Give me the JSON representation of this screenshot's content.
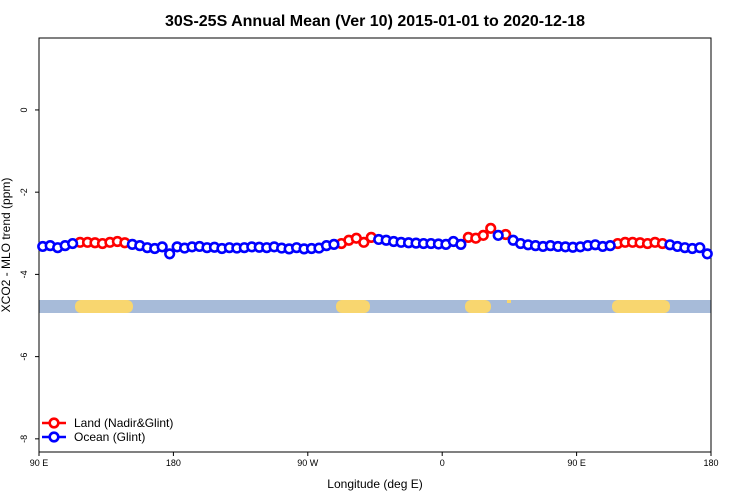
{
  "chart_data": {
    "type": "scatter",
    "title": "30S-25S Annual Mean (Ver 10)   2015-01-01 to 2020-12-18",
    "x_label": "Longitude (deg E)",
    "y_label": "XCO2 - MLO trend (ppm)",
    "xlim": [
      90,
      540
    ],
    "ylim": [
      -8.32,
      1.75
    ],
    "xticks": [
      {
        "value": 90,
        "label": "90 E"
      },
      {
        "value": 180,
        "label": "180"
      },
      {
        "value": 270,
        "label": "90 W"
      },
      {
        "value": 360,
        "label": "0"
      },
      {
        "value": 450,
        "label": "90 E"
      },
      {
        "value": 540,
        "label": "180"
      }
    ],
    "yticks": [
      0,
      -2,
      -4,
      -6,
      -8
    ],
    "legend": "bottom-left",
    "series": [
      {
        "name": "Land (Nadir&Glint)",
        "color": "#ff0000",
        "x": [
          117.5,
          122.5,
          127.5,
          132.5,
          137.5,
          142.5,
          147.5,
          292.5,
          297.5,
          302.5,
          307.5,
          312.5,
          377.5,
          382.5,
          387.5,
          392.5,
          402.5,
          477.5,
          482.5,
          487.5,
          492.5,
          497.5,
          502.5,
          507.5
        ],
        "values": [
          -3.22,
          -3.22,
          -3.23,
          -3.25,
          -3.22,
          -3.2,
          -3.23,
          -3.25,
          -3.17,
          -3.12,
          -3.22,
          -3.1,
          -3.1,
          -3.12,
          -3.05,
          -2.88,
          -3.03,
          -3.25,
          -3.22,
          -3.22,
          -3.23,
          -3.25,
          -3.22,
          -3.25
        ]
      },
      {
        "name": "Ocean (Glint)",
        "color": "#0000ff",
        "x": [
          92.5,
          97.5,
          102.5,
          107.5,
          112.5,
          152.5,
          157.5,
          162.5,
          167.5,
          172.5,
          177.5,
          182.5,
          187.5,
          192.5,
          197.5,
          202.5,
          207.5,
          212.5,
          217.5,
          222.5,
          227.5,
          232.5,
          237.5,
          242.5,
          247.5,
          252.5,
          257.5,
          262.5,
          267.5,
          272.5,
          277.5,
          282.5,
          287.5,
          317.5,
          322.5,
          327.5,
          332.5,
          337.5,
          342.5,
          347.5,
          352.5,
          357.5,
          362.5,
          367.5,
          372.5,
          397.5,
          407.5,
          412.5,
          417.5,
          422.5,
          427.5,
          432.5,
          437.5,
          442.5,
          447.5,
          452.5,
          457.5,
          462.5,
          467.5,
          472.5,
          512.5,
          517.5,
          522.5,
          527.5,
          532.5,
          537.5
        ],
        "values": [
          -3.32,
          -3.3,
          -3.35,
          -3.3,
          -3.25,
          -3.27,
          -3.3,
          -3.35,
          -3.37,
          -3.33,
          -3.5,
          -3.33,
          -3.36,
          -3.33,
          -3.32,
          -3.35,
          -3.34,
          -3.37,
          -3.35,
          -3.36,
          -3.35,
          -3.33,
          -3.34,
          -3.35,
          -3.33,
          -3.36,
          -3.38,
          -3.35,
          -3.38,
          -3.37,
          -3.36,
          -3.3,
          -3.27,
          -3.15,
          -3.17,
          -3.2,
          -3.22,
          -3.23,
          -3.24,
          -3.25,
          -3.25,
          -3.26,
          -3.27,
          -3.2,
          -3.27,
          -3.05,
          -3.17,
          -3.25,
          -3.28,
          -3.3,
          -3.32,
          -3.3,
          -3.32,
          -3.33,
          -3.34,
          -3.33,
          -3.3,
          -3.28,
          -3.32,
          -3.3,
          -3.28,
          -3.32,
          -3.35,
          -3.37,
          -3.35,
          -3.5
        ]
      }
    ]
  }
}
